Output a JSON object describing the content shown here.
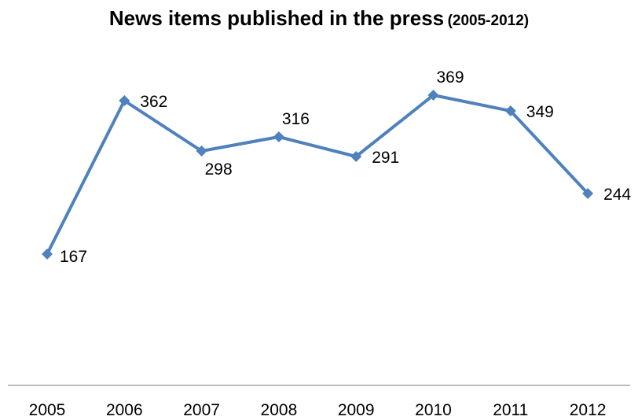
{
  "chart_data": {
    "type": "line",
    "title": "News items published in the press",
    "subtitle": "(2005-2012)",
    "categories": [
      "2005",
      "2006",
      "2007",
      "2008",
      "2009",
      "2010",
      "2011",
      "2012"
    ],
    "series": [
      {
        "values": [
          167,
          362,
          298,
          316,
          291,
          369,
          349,
          244
        ]
      }
    ],
    "data_labels": [
      "167",
      "362",
      "298",
      "316",
      "291",
      "369",
      "349",
      "244"
    ],
    "ylim": [
      0,
      400
    ],
    "grid": false,
    "legend": "none",
    "colors": {
      "line": "#4f81bd",
      "axis": "#a6a6a6"
    }
  }
}
